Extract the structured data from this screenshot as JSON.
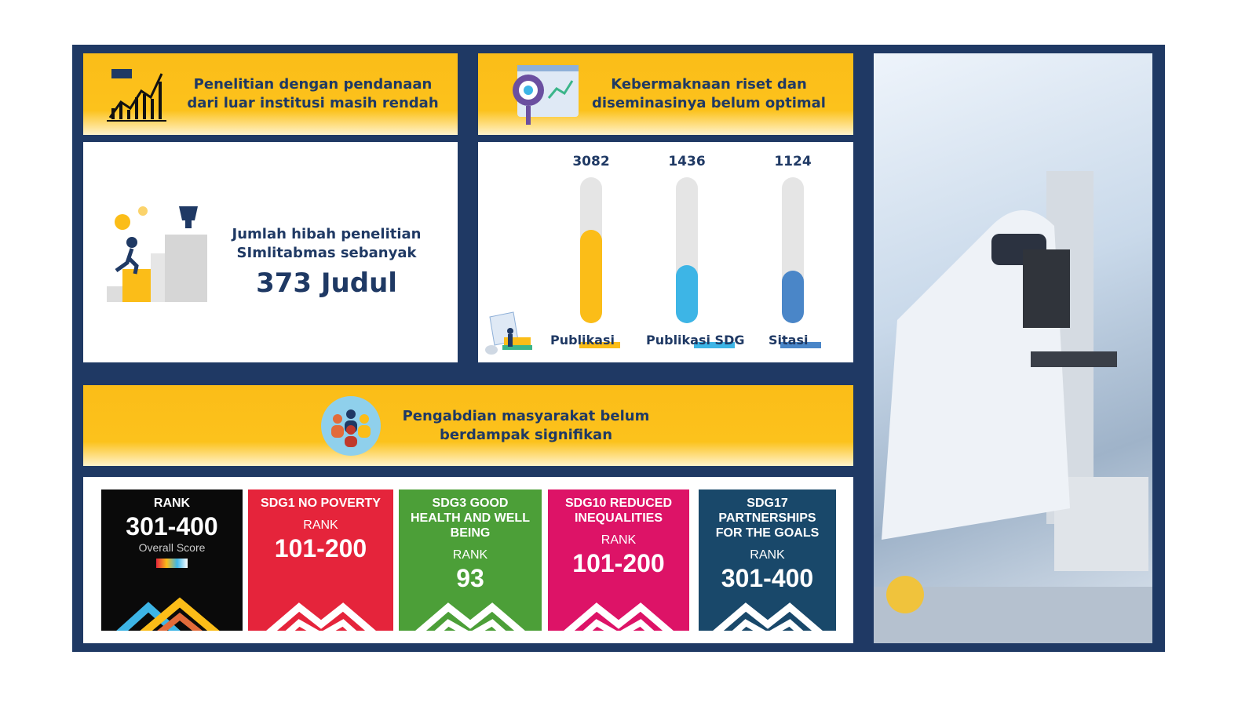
{
  "panel1": {
    "header": "Penelitian dengan pendanaan dari luar institusi masih rendah",
    "text": "Jumlah hibah penelitian SImlitabmas sebanyak",
    "value": "373 Judul",
    "icon": "growth-chart-icon"
  },
  "panel2": {
    "header": "Kebermaknaan riset dan diseminasinya belum optimal",
    "icon": "magnifier-analytics-icon"
  },
  "chart_data": {
    "type": "bar",
    "categories": [
      "Publikasi",
      "Publikasi SDG",
      "Sitasi"
    ],
    "values": [
      3082,
      1436,
      1124
    ],
    "fill_fraction": [
      0.64,
      0.4,
      0.36
    ],
    "colors": [
      "#fbbd18",
      "#3db5e6",
      "#4a86c8"
    ]
  },
  "panel3": {
    "header": "Pengabdian masyarakat belum berdampak signifikan",
    "icon": "community-people-icon"
  },
  "cards": [
    {
      "title": "RANK",
      "rank_label": "",
      "rank": "301-400",
      "sub": "Overall Score",
      "color": "#0a0a0a"
    },
    {
      "title": "SDG1 NO POVERTY",
      "rank_label": "RANK",
      "rank": "101-200",
      "color": "#e5243b"
    },
    {
      "title": "SDG3 GOOD HEALTH AND WELL BEING",
      "rank_label": "RANK",
      "rank": "93",
      "color": "#4c9f38"
    },
    {
      "title": "SDG10 REDUCED INEQUALITIES",
      "rank_label": "RANK",
      "rank": "101-200",
      "color": "#dd1367"
    },
    {
      "title": "SDG17 PARTNERSHIPS FOR THE GOALS",
      "rank_label": "RANK",
      "rank": "301-400",
      "color": "#19486a"
    }
  ],
  "photo": {
    "subject": "lab-researcher-microscope"
  }
}
